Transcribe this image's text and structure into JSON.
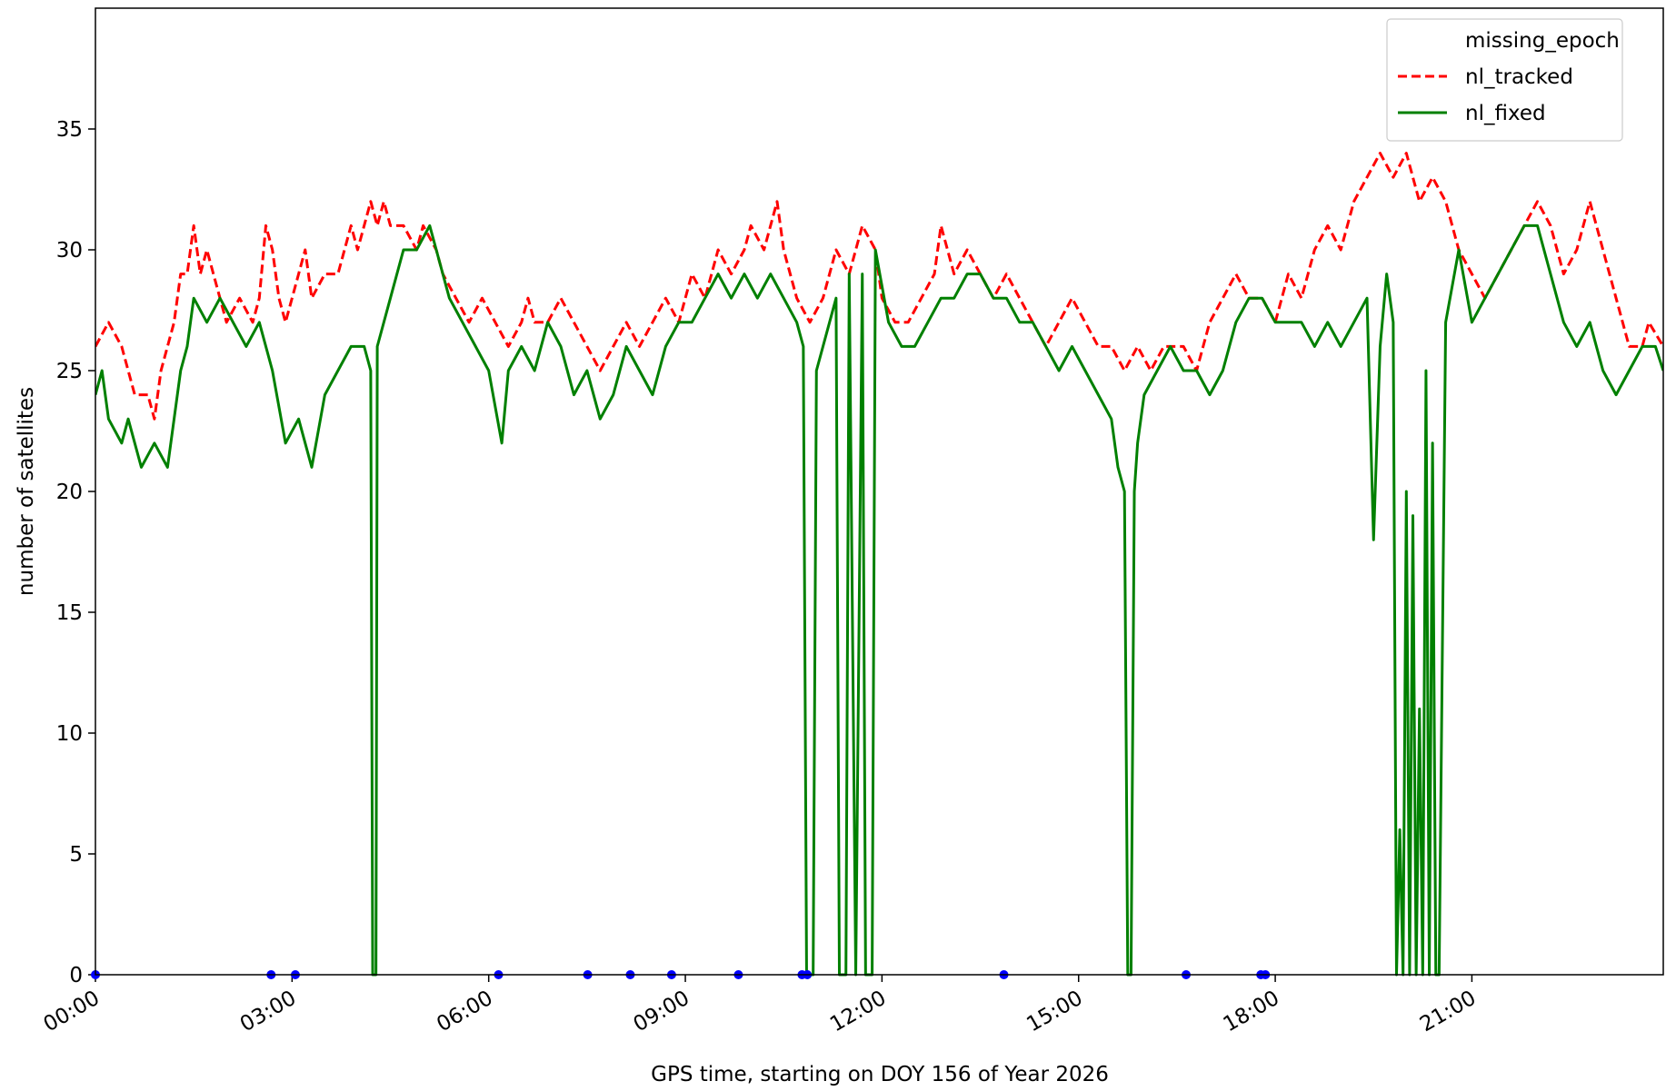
{
  "chart_data": {
    "type": "line",
    "xlabel": "GPS time, starting on DOY 156 of Year 2026",
    "ylabel": "number of satellites",
    "xlim": [
      0,
      23.92
    ],
    "ylim": [
      0,
      40
    ],
    "xticks": [
      {
        "value": 0,
        "label": "00:00"
      },
      {
        "value": 3,
        "label": "03:00"
      },
      {
        "value": 6,
        "label": "06:00"
      },
      {
        "value": 9,
        "label": "09:00"
      },
      {
        "value": 12,
        "label": "12:00"
      },
      {
        "value": 15,
        "label": "15:00"
      },
      {
        "value": 18,
        "label": "18:00"
      },
      {
        "value": 21,
        "label": "21:00"
      }
    ],
    "yticks": [
      0,
      5,
      10,
      15,
      20,
      25,
      30,
      35
    ],
    "legend": "upper right",
    "series": [
      {
        "name": "missing_epoch",
        "color": "#0000ff",
        "linestyle": "none",
        "x": [
          0,
          2.68,
          3.05,
          6.15,
          7.51,
          8.16,
          8.79,
          9.81,
          10.78,
          10.86,
          13.86,
          16.64,
          17.78,
          17.85
        ],
        "values": [
          0,
          0,
          0,
          0,
          0,
          0,
          0,
          0,
          0,
          0,
          0,
          0,
          0,
          0
        ]
      },
      {
        "name": "nl_tracked",
        "color": "#ff0000",
        "linestyle": "dashed",
        "x": [
          0,
          0.2,
          0.4,
          0.5,
          0.6,
          0.8,
          0.9,
          1.0,
          1.1,
          1.2,
          1.3,
          1.4,
          1.5,
          1.6,
          1.7,
          1.8,
          1.9,
          2.0,
          2.2,
          2.4,
          2.5,
          2.6,
          2.7,
          2.8,
          2.9,
          3.0,
          3.2,
          3.3,
          3.5,
          3.7,
          3.8,
          3.9,
          4.0,
          4.1,
          4.2,
          4.3,
          4.4,
          4.5,
          4.7,
          4.9,
          5.0,
          5.2,
          5.3,
          5.5,
          5.7,
          5.9,
          6.1,
          6.3,
          6.5,
          6.6,
          6.7,
          6.9,
          7.1,
          7.3,
          7.5,
          7.7,
          7.9,
          8.1,
          8.3,
          8.5,
          8.7,
          8.9,
          9.1,
          9.3,
          9.5,
          9.7,
          9.9,
          10.0,
          10.2,
          10.4,
          10.5,
          10.7,
          10.9,
          11.1,
          11.3,
          11.5,
          11.7,
          11.9,
          12.0,
          12.2,
          12.4,
          12.6,
          12.8,
          12.9,
          13.1,
          13.3,
          13.5,
          13.7,
          13.9,
          14.1,
          14.3,
          14.5,
          14.7,
          14.9,
          15.1,
          15.3,
          15.5,
          15.7,
          15.9,
          16.1,
          16.3,
          16.6,
          16.8,
          17.0,
          17.2,
          17.4,
          17.6,
          17.8,
          18.0,
          18.2,
          18.4,
          18.6,
          18.8,
          19.0,
          19.2,
          19.4,
          19.6,
          19.8,
          20.0,
          20.2,
          20.4,
          20.6,
          20.8,
          21.0,
          21.2,
          21.4,
          21.6,
          21.8,
          22.0,
          22.2,
          22.4,
          22.6,
          22.8,
          23.0,
          23.2,
          23.4,
          23.6,
          23.7,
          23.92
        ],
        "values": [
          26,
          27,
          26,
          25,
          24,
          24,
          23,
          25,
          26,
          27,
          29,
          29,
          31,
          29,
          30,
          29,
          28,
          27,
          28,
          27,
          28,
          31,
          30,
          28,
          27,
          28,
          30,
          28,
          29,
          29,
          30,
          31,
          30,
          31,
          32,
          31,
          32,
          31,
          31,
          30,
          31,
          30,
          29,
          28,
          27,
          28,
          27,
          26,
          27,
          28,
          27,
          27,
          28,
          27,
          26,
          25,
          26,
          27,
          26,
          27,
          28,
          27,
          29,
          28,
          30,
          29,
          30,
          31,
          30,
          32,
          30,
          28,
          27,
          28,
          30,
          29,
          31,
          30,
          28,
          27,
          27,
          28,
          29,
          31,
          29,
          30,
          29,
          28,
          29,
          28,
          27,
          26,
          27,
          28,
          27,
          26,
          26,
          25,
          26,
          25,
          26,
          26,
          25,
          27,
          28,
          29,
          28,
          28,
          27,
          29,
          28,
          30,
          31,
          30,
          32,
          33,
          34,
          33,
          34,
          32,
          33,
          32,
          30,
          29,
          28,
          29,
          30,
          31,
          32,
          31,
          29,
          30,
          32,
          30,
          28,
          26,
          26,
          27,
          26
        ]
      },
      {
        "name": "nl_fixed",
        "color": "#008000",
        "linestyle": "solid",
        "x": [
          0,
          0.1,
          0.2,
          0.4,
          0.5,
          0.7,
          0.9,
          1.1,
          1.3,
          1.4,
          1.5,
          1.7,
          1.9,
          2.1,
          2.3,
          2.5,
          2.7,
          2.9,
          3.1,
          3.3,
          3.5,
          3.7,
          3.9,
          4.1,
          4.2,
          4.23,
          4.28,
          4.3,
          4.5,
          4.7,
          4.9,
          5.1,
          5.2,
          5.4,
          5.6,
          5.8,
          6.0,
          6.2,
          6.3,
          6.5,
          6.7,
          6.9,
          7.1,
          7.3,
          7.5,
          7.7,
          7.9,
          8.1,
          8.3,
          8.5,
          8.7,
          8.9,
          9.1,
          9.3,
          9.5,
          9.7,
          9.9,
          10.1,
          10.3,
          10.5,
          10.7,
          10.8,
          10.85,
          10.95,
          11.0,
          11.2,
          11.3,
          11.35,
          11.45,
          11.5,
          11.6,
          11.7,
          11.75,
          11.85,
          11.9,
          12.1,
          12.3,
          12.5,
          12.7,
          12.9,
          13.1,
          13.3,
          13.5,
          13.7,
          13.9,
          14.1,
          14.3,
          14.5,
          14.7,
          14.9,
          15.1,
          15.3,
          15.5,
          15.6,
          15.7,
          15.75,
          15.8,
          15.85,
          15.9,
          16.0,
          16.2,
          16.4,
          16.6,
          16.8,
          17.0,
          17.2,
          17.4,
          17.6,
          17.8,
          18.0,
          18.2,
          18.4,
          18.6,
          18.8,
          19.0,
          19.2,
          19.4,
          19.5,
          19.6,
          19.7,
          19.8,
          19.85,
          19.9,
          19.95,
          20.0,
          20.05,
          20.1,
          20.15,
          20.2,
          20.25,
          20.3,
          20.35,
          20.4,
          20.45,
          20.5,
          20.6,
          20.8,
          21.0,
          21.2,
          21.4,
          21.6,
          21.8,
          22.0,
          22.2,
          22.4,
          22.6,
          22.8,
          23.0,
          23.2,
          23.4,
          23.6,
          23.8,
          23.92
        ],
        "values": [
          24,
          25,
          23,
          22,
          23,
          21,
          22,
          21,
          25,
          26,
          28,
          27,
          28,
          27,
          26,
          27,
          25,
          22,
          23,
          21,
          24,
          25,
          26,
          26,
          25,
          0,
          0,
          26,
          28,
          30,
          30,
          31,
          30,
          28,
          27,
          26,
          25,
          22,
          25,
          26,
          25,
          27,
          26,
          24,
          25,
          23,
          24,
          26,
          25,
          24,
          26,
          27,
          27,
          28,
          29,
          28,
          29,
          28,
          29,
          28,
          27,
          26,
          0,
          0,
          25,
          27,
          28,
          0,
          0,
          29,
          0,
          29,
          0,
          0,
          30,
          27,
          26,
          26,
          27,
          28,
          28,
          29,
          29,
          28,
          28,
          27,
          27,
          26,
          25,
          26,
          25,
          24,
          23,
          21,
          20,
          0,
          0,
          20,
          22,
          24,
          25,
          26,
          25,
          25,
          24,
          25,
          27,
          28,
          28,
          27,
          27,
          27,
          26,
          27,
          26,
          27,
          28,
          18,
          26,
          29,
          27,
          0,
          6,
          0,
          20,
          0,
          19,
          0,
          11,
          0,
          25,
          0,
          22,
          0,
          0,
          27,
          30,
          27,
          28,
          29,
          30,
          31,
          31,
          29,
          27,
          26,
          27,
          25,
          24,
          25,
          26,
          26,
          25
        ]
      }
    ]
  }
}
